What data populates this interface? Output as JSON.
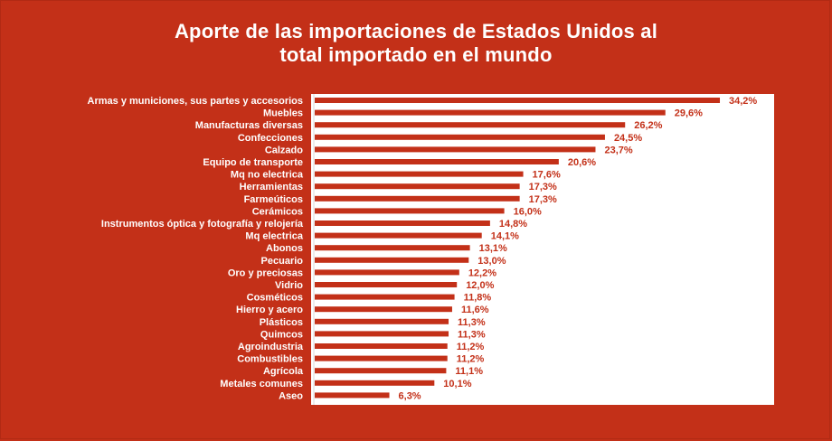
{
  "chart_data": {
    "type": "bar",
    "orientation": "horizontal",
    "title": "Aporte de las importaciones de Estados Unidos al total importado en el mundo",
    "title_lines": [
      "Aporte de las importaciones de Estados Unidos al",
      "total importado en el mundo"
    ],
    "categories": [
      "Armas y municiones, sus partes y accesorios",
      "Muebles",
      "Manufacturas diversas",
      "Confecciones",
      "Calzado",
      "Equipo de transporte",
      "Mq no electrica",
      "Herramientas",
      "Farmeúticos",
      "Cerámicos",
      "Instrumentos óptica y fotografía y relojería",
      "Mq electrica",
      "Abonos",
      "Pecuario",
      "Oro y preciosas",
      "Vidrio",
      "Cosméticos",
      "Hierro y acero",
      "Plásticos",
      "Quimcos",
      "Agroindustria",
      "Combustibles",
      "Agrícola",
      "Metales comunes",
      "Aseo"
    ],
    "values": [
      34.2,
      29.6,
      26.2,
      24.5,
      23.7,
      20.6,
      17.6,
      17.3,
      17.3,
      16.0,
      14.8,
      14.1,
      13.1,
      13.0,
      12.2,
      12.0,
      11.8,
      11.6,
      11.3,
      11.3,
      11.2,
      11.2,
      11.1,
      10.1,
      6.3
    ],
    "data_labels": [
      "34,2%",
      "29,6%",
      "26,2%",
      "24,5%",
      "23,7%",
      "20,6%",
      "17,6%",
      "17,3%",
      "17,3%",
      "16,0%",
      "14,8%",
      "14,1%",
      "13,1%",
      "13,0%",
      "12,2%",
      "12,0%",
      "11,8%",
      "11,6%",
      "11,3%",
      "11,3%",
      "11,2%",
      "11,2%",
      "11,1%",
      "10,1%",
      "6,3%"
    ],
    "unit": "%",
    "xlim": [
      0,
      38
    ],
    "grid": false,
    "legend": "none",
    "colors": {
      "background": "#c33018",
      "bar": "#c33018",
      "plot_area": "#ffffff",
      "title": "#ffffff",
      "category_label": "#ffffff",
      "value_label": "#c33018"
    }
  }
}
